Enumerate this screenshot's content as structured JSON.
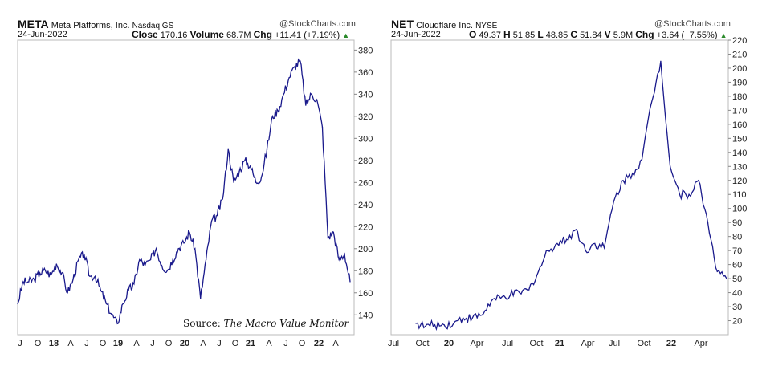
{
  "charts": [
    {
      "symbol": "META",
      "name": "Meta Platforms, Inc.",
      "exchange": "Nasdaq GS",
      "watermark": "@StockCharts.com",
      "date": "24-Jun-2022",
      "quote": {
        "close_label": "Close",
        "close": "170.16",
        "volume_label": "Volume",
        "volume": "68.7M",
        "chg_label": "Chg",
        "chg": "+11.41 (+7.19%)"
      },
      "source_prefix": "Source: ",
      "source_italic": "The Macro Value Monitor"
    },
    {
      "symbol": "NET",
      "name": "Cloudflare Inc.",
      "exchange": "NYSE",
      "watermark": "@StockCharts.com",
      "date": "24-Jun-2022",
      "quote": {
        "o_label": "O",
        "o": "49.37",
        "h_label": "H",
        "h": "51.85",
        "l_label": "L",
        "l": "48.85",
        "c_label": "C",
        "c": "51.84",
        "v_label": "V",
        "v": "5.9M",
        "chg_label": "Chg",
        "chg": "+3.64 (+7.55%)"
      }
    }
  ],
  "chart_data": [
    {
      "type": "line",
      "title": "META Meta Platforms, Inc.",
      "ylim": [
        122,
        389
      ],
      "yticks": [
        140,
        160,
        180,
        200,
        220,
        240,
        260,
        280,
        300,
        320,
        340,
        360,
        380
      ],
      "xticks": [
        "J",
        "O",
        "18",
        "A",
        "J",
        "O",
        "19",
        "A",
        "J",
        "O",
        "20",
        "A",
        "J",
        "O",
        "21",
        "A",
        "J",
        "O",
        "22",
        "A"
      ],
      "xtick_bold": [
        "18",
        "19",
        "20",
        "21",
        "22"
      ],
      "line_color": "#1a1a8c",
      "x_start": "2017-06",
      "months": 61,
      "values": [
        150,
        170,
        170,
        172,
        178,
        180,
        176,
        186,
        178,
        160,
        172,
        190,
        195,
        175,
        175,
        162,
        150,
        140,
        132,
        150,
        162,
        168,
        190,
        185,
        190,
        200,
        185,
        180,
        190,
        200,
        205,
        215,
        200,
        155,
        190,
        225,
        230,
        245,
        290,
        260,
        270,
        280,
        275,
        260,
        265,
        290,
        320,
        325,
        340,
        355,
        365,
        370,
        330,
        340,
        335,
        310,
        210,
        215,
        190,
        195,
        170
      ]
    },
    {
      "type": "line",
      "title": "NET Cloudflare Inc.",
      "ylim": [
        10,
        220
      ],
      "yticks": [
        20,
        30,
        40,
        50,
        60,
        70,
        80,
        90,
        100,
        110,
        120,
        130,
        140,
        150,
        160,
        170,
        180,
        190,
        200,
        210,
        220
      ],
      "xticks": [
        "Jul",
        "Oct",
        "20",
        "Apr",
        "Jul",
        "Oct",
        "21",
        "Apr",
        "Jul",
        "Oct",
        "22",
        "Apr"
      ],
      "xtick_bold": [
        "20",
        "21",
        "22"
      ],
      "line_color": "#1a1a8c",
      "x_start": "2019-09",
      "months": 34,
      "values": [
        18,
        16,
        17,
        17,
        18,
        22,
        22,
        24,
        34,
        36,
        38,
        40,
        42,
        55,
        70,
        75,
        78,
        85,
        70,
        75,
        72,
        105,
        120,
        125,
        135,
        175,
        205,
        130,
        110,
        110,
        120,
        90,
        55,
        50
      ]
    }
  ]
}
